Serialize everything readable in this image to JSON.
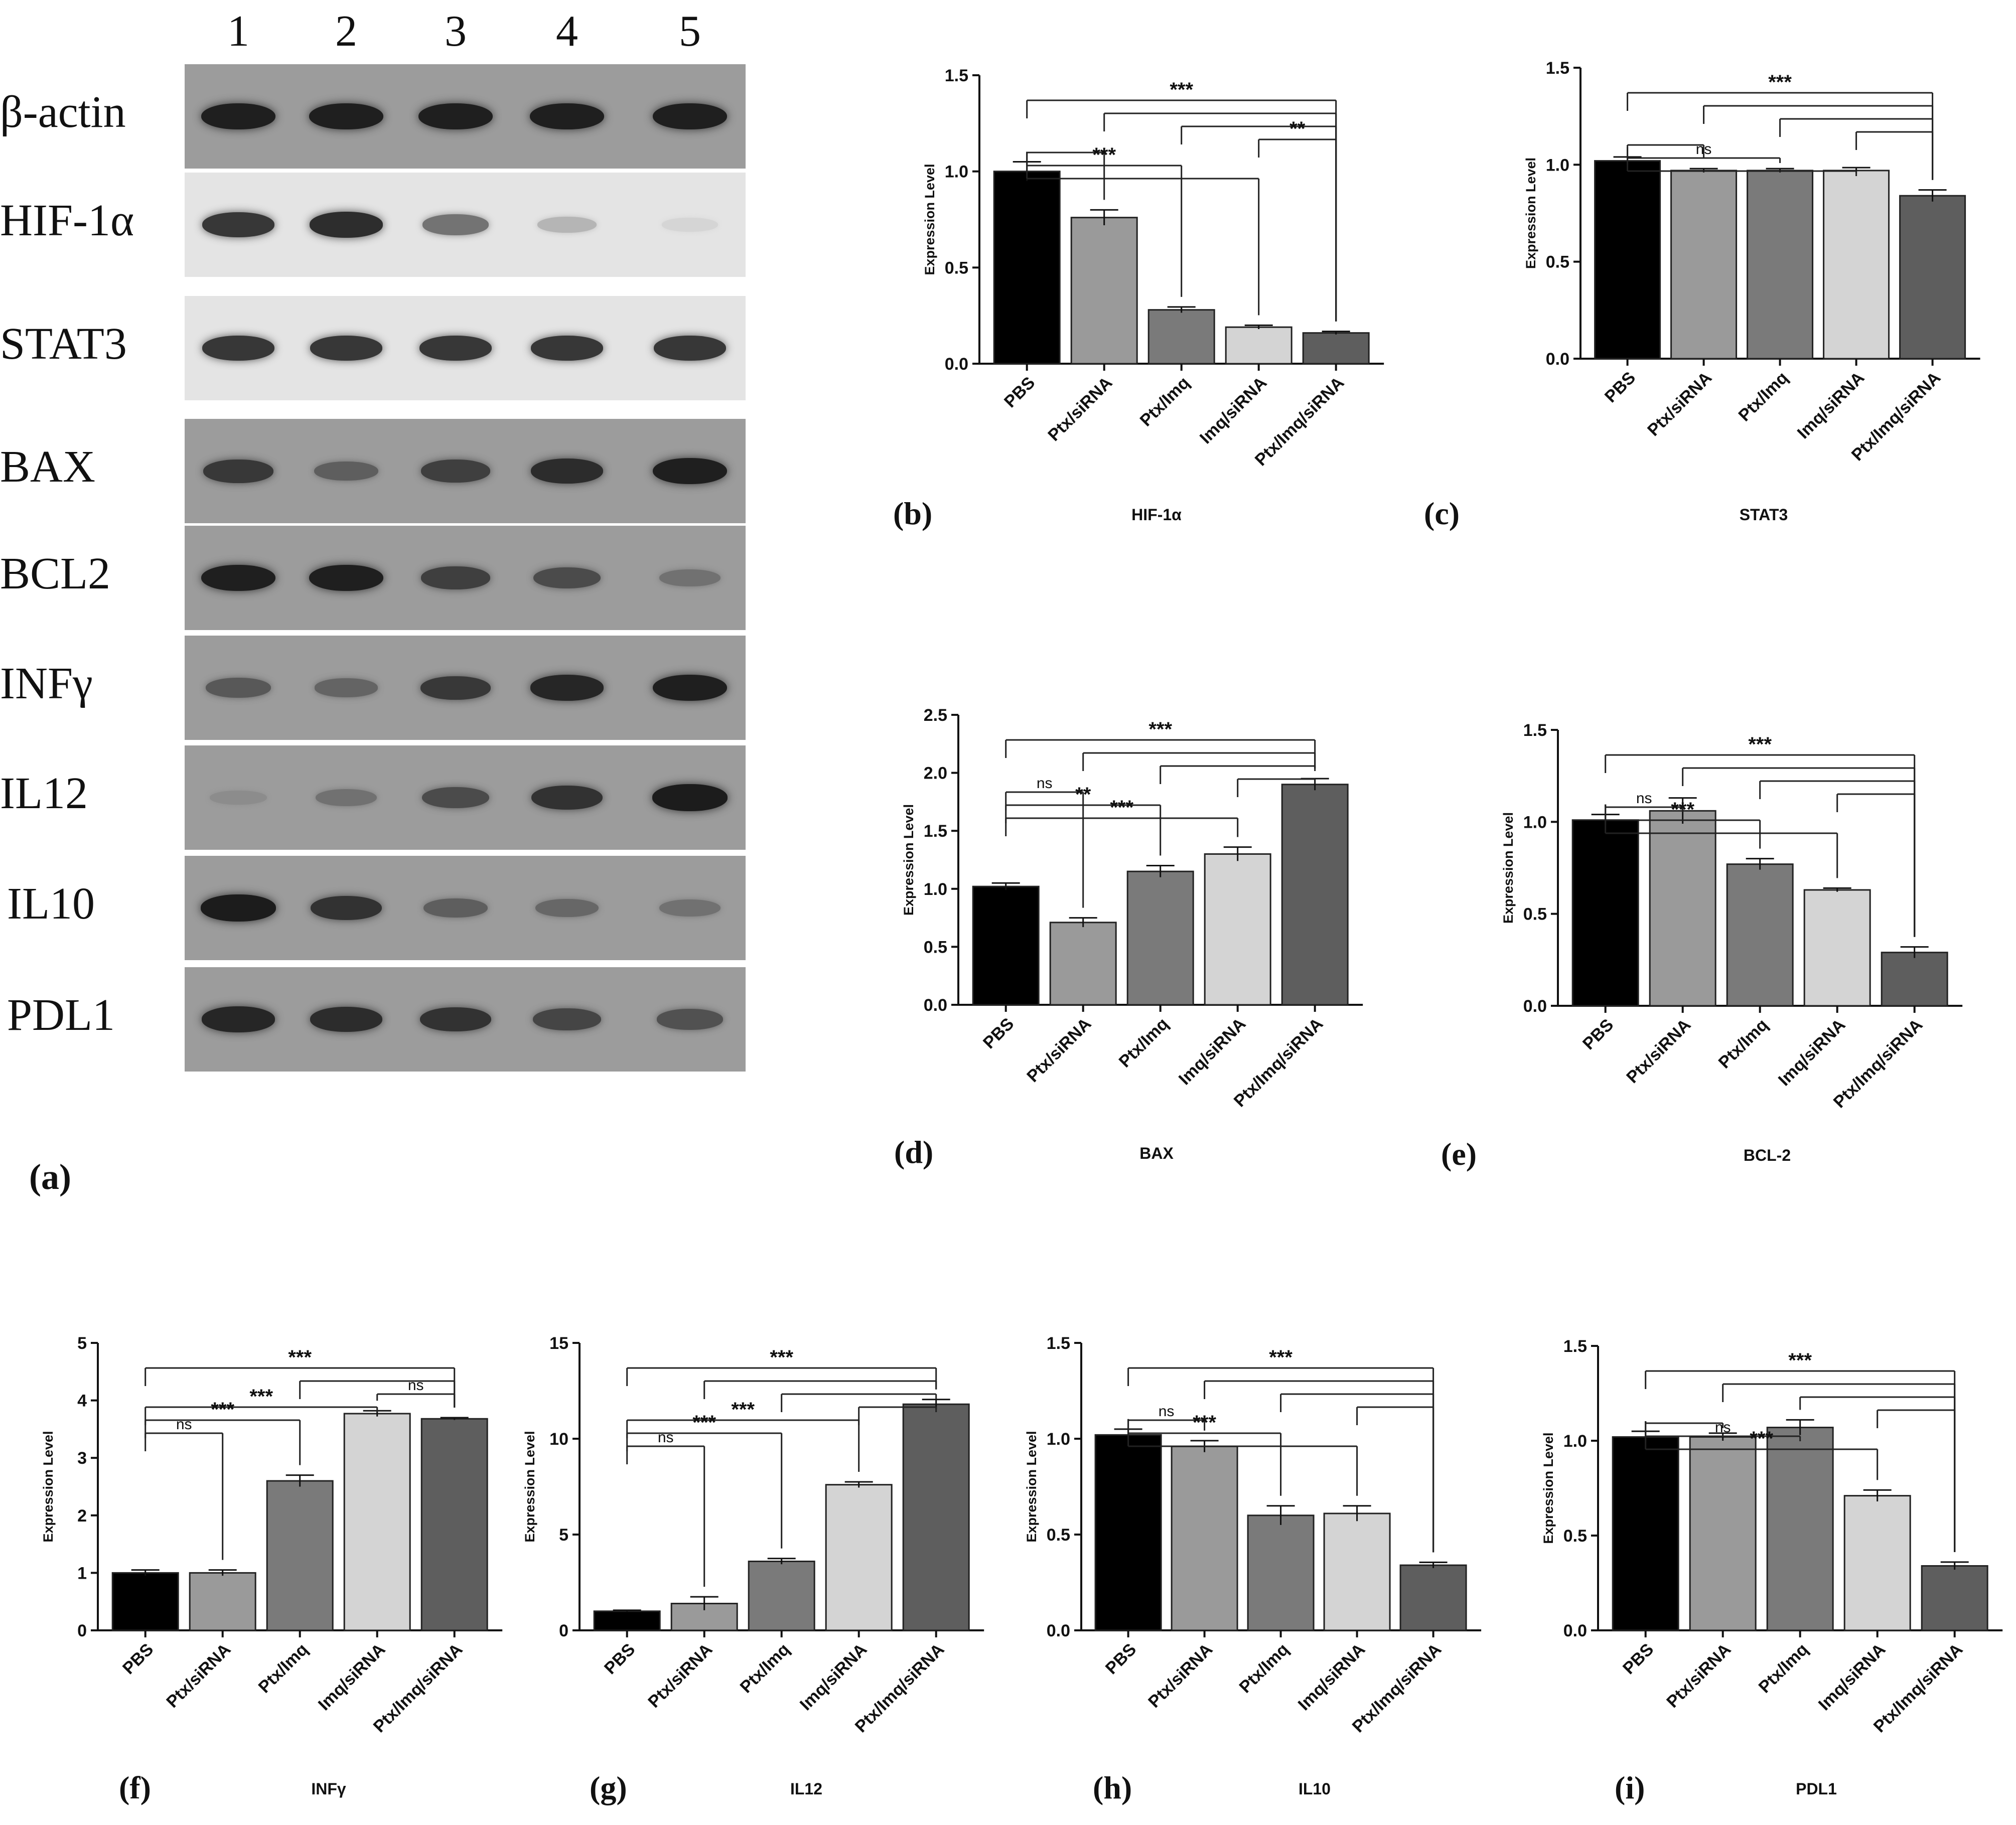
{
  "colors": {
    "PBS": "#000000",
    "Ptx/siRNA": "#9a9a9a",
    "Ptx/Imq": "#7a7a7a",
    "Imq/siRNA": "#d4d4d4",
    "Ptx/Imq/siRNA": "#5e5e5e",
    "dark_strip": "#9c9c9c",
    "light_strip": "#e4e4e4"
  },
  "blot": {
    "panel_label": "(a)",
    "lanes": [
      "1",
      "2",
      "3",
      "4",
      "5"
    ],
    "rows": [
      {
        "label": "β-actin",
        "strip": "dark",
        "intensity": [
          0.95,
          0.95,
          0.95,
          0.95,
          0.95
        ]
      },
      {
        "label": "HIF-1α",
        "strip": "light",
        "intensity": [
          0.85,
          0.9,
          0.55,
          0.22,
          0.06
        ]
      },
      {
        "label": "STAT3",
        "strip": "light",
        "intensity": [
          0.85,
          0.85,
          0.85,
          0.85,
          0.85
        ]
      },
      {
        "label": "BAX",
        "strip": "dark",
        "intensity": [
          0.75,
          0.45,
          0.7,
          0.85,
          0.95
        ]
      },
      {
        "label": "BCL2",
        "strip": "dark",
        "intensity": [
          0.95,
          0.95,
          0.7,
          0.6,
          0.3
        ]
      },
      {
        "label": "INFγ",
        "strip": "dark",
        "intensity": [
          0.5,
          0.4,
          0.75,
          0.9,
          0.95
        ]
      },
      {
        "label": "IL12",
        "strip": "dark",
        "intensity": [
          0.08,
          0.3,
          0.6,
          0.8,
          0.98
        ]
      },
      {
        "label": "IL10",
        "strip": "dark",
        "intensity": [
          0.98,
          0.8,
          0.45,
          0.38,
          0.3
        ]
      },
      {
        "label": "PDL1",
        "strip": "dark",
        "intensity": [
          0.9,
          0.85,
          0.8,
          0.65,
          0.55
        ]
      }
    ]
  },
  "chart_data": [
    {
      "id": "b",
      "panel_label": "(b)",
      "title": "HIF-1α",
      "type": "bar",
      "ylabel": "Expression Level",
      "xlabel": "",
      "categories": [
        "PBS",
        "Ptx/siRNA",
        "Ptx/Imq",
        "Imq/siRNA",
        "Ptx/Imq/siRNA"
      ],
      "values": [
        1.0,
        0.76,
        0.28,
        0.19,
        0.16
      ],
      "errors": [
        0.05,
        0.04,
        0.015,
        0.01,
        0.008
      ],
      "ylim": [
        0,
        1.5
      ],
      "yticks": [
        "0.0",
        "0.5",
        "1.0",
        "1.5"
      ],
      "significance": [
        {
          "from": 0,
          "to": 4,
          "label": "***"
        },
        {
          "from": 1,
          "to": 4,
          "label": ""
        },
        {
          "from": 2,
          "to": 4,
          "label": ""
        },
        {
          "from": 3,
          "to": 4,
          "label": "**"
        },
        {
          "from": 0,
          "to": 1,
          "label": ""
        },
        {
          "from": 0,
          "to": 2,
          "label": "***"
        },
        {
          "from": 0,
          "to": 3,
          "label": ""
        }
      ]
    },
    {
      "id": "c",
      "panel_label": "(c)",
      "title": "STAT3",
      "type": "bar",
      "ylabel": "Expression Level",
      "xlabel": "",
      "categories": [
        "PBS",
        "Ptx/siRNA",
        "Ptx/Imq",
        "Imq/siRNA",
        "Ptx/Imq/siRNA"
      ],
      "values": [
        1.02,
        0.97,
        0.97,
        0.97,
        0.84
      ],
      "errors": [
        0.02,
        0.01,
        0.01,
        0.015,
        0.03
      ],
      "ylim": [
        0,
        1.5
      ],
      "yticks": [
        "0.0",
        "0.5",
        "1.0",
        "1.5"
      ],
      "significance": [
        {
          "from": 0,
          "to": 4,
          "label": "***"
        },
        {
          "from": 1,
          "to": 4,
          "label": ""
        },
        {
          "from": 2,
          "to": 4,
          "label": ""
        },
        {
          "from": 3,
          "to": 4,
          "label": ""
        },
        {
          "from": 0,
          "to": 1,
          "label": ""
        },
        {
          "from": 0,
          "to": 2,
          "label": "ns"
        },
        {
          "from": 0,
          "to": 3,
          "label": ""
        }
      ]
    },
    {
      "id": "d",
      "panel_label": "(d)",
      "title": "BAX",
      "type": "bar",
      "ylabel": "Expression Level",
      "xlabel": "",
      "categories": [
        "PBS",
        "Ptx/siRNA",
        "Ptx/Imq",
        "Imq/siRNA",
        "Ptx/Imq/siRNA"
      ],
      "values": [
        1.02,
        0.71,
        1.15,
        1.3,
        1.9
      ],
      "errors": [
        0.03,
        0.04,
        0.05,
        0.06,
        0.05
      ],
      "ylim": [
        0,
        2.5
      ],
      "yticks": [
        "0.0",
        "0.5",
        "1.0",
        "1.5",
        "2.0",
        "2.5"
      ],
      "significance": [
        {
          "from": 0,
          "to": 4,
          "label": "***"
        },
        {
          "from": 1,
          "to": 4,
          "label": ""
        },
        {
          "from": 2,
          "to": 4,
          "label": ""
        },
        {
          "from": 3,
          "to": 4,
          "label": ""
        },
        {
          "from": 0,
          "to": 1,
          "label": "ns"
        },
        {
          "from": 0,
          "to": 2,
          "label": "**"
        },
        {
          "from": 0,
          "to": 3,
          "label": "***"
        }
      ]
    },
    {
      "id": "e",
      "panel_label": "(e)",
      "title": "BCL-2",
      "type": "bar",
      "ylabel": "Expression Level",
      "xlabel": "",
      "categories": [
        "PBS",
        "Ptx/siRNA",
        "Ptx/Imq",
        "Imq/siRNA",
        "Ptx/Imq/siRNA"
      ],
      "values": [
        1.01,
        1.06,
        0.77,
        0.63,
        0.29
      ],
      "errors": [
        0.03,
        0.07,
        0.03,
        0.01,
        0.03
      ],
      "ylim": [
        0,
        1.5
      ],
      "yticks": [
        "0.0",
        "0.5",
        "1.0",
        "1.5"
      ],
      "significance": [
        {
          "from": 0,
          "to": 4,
          "label": "***"
        },
        {
          "from": 1,
          "to": 4,
          "label": ""
        },
        {
          "from": 2,
          "to": 4,
          "label": ""
        },
        {
          "from": 3,
          "to": 4,
          "label": ""
        },
        {
          "from": 0,
          "to": 1,
          "label": "ns"
        },
        {
          "from": 0,
          "to": 2,
          "label": "***"
        },
        {
          "from": 0,
          "to": 3,
          "label": ""
        }
      ]
    },
    {
      "id": "f",
      "panel_label": "(f)",
      "title": "INFγ",
      "type": "bar",
      "ylabel": "Expression Level",
      "xlabel": "",
      "categories": [
        "PBS",
        "Ptx/siRNA",
        "Ptx/Imq",
        "Imq/siRNA",
        "Ptx/Imq/siRNA"
      ],
      "values": [
        1.0,
        1.0,
        2.6,
        3.77,
        3.68
      ],
      "errors": [
        0.05,
        0.05,
        0.1,
        0.05,
        0.02
      ],
      "ylim": [
        0,
        5
      ],
      "yticks": [
        "0",
        "1",
        "2",
        "3",
        "4",
        "5"
      ],
      "significance": [
        {
          "from": 0,
          "to": 4,
          "label": "***"
        },
        {
          "from": 2,
          "to": 4,
          "label": ""
        },
        {
          "from": 3,
          "to": 4,
          "label": "ns"
        },
        {
          "from": 0,
          "to": 3,
          "label": "***"
        },
        {
          "from": 0,
          "to": 2,
          "label": "***"
        },
        {
          "from": 0,
          "to": 1,
          "label": "ns"
        }
      ]
    },
    {
      "id": "g",
      "panel_label": "(g)",
      "title": "IL12",
      "type": "bar",
      "ylabel": "Expression Level",
      "xlabel": "",
      "categories": [
        "PBS",
        "Ptx/siRNA",
        "Ptx/Imq",
        "Imq/siRNA",
        "Ptx/Imq/siRNA"
      ],
      "values": [
        1.0,
        1.4,
        3.6,
        7.6,
        11.8
      ],
      "errors": [
        0.05,
        0.35,
        0.15,
        0.15,
        0.25
      ],
      "ylim": [
        0,
        15
      ],
      "yticks": [
        "0",
        "5",
        "10",
        "15"
      ],
      "significance": [
        {
          "from": 0,
          "to": 4,
          "label": "***"
        },
        {
          "from": 1,
          "to": 4,
          "label": ""
        },
        {
          "from": 2,
          "to": 4,
          "label": ""
        },
        {
          "from": 3,
          "to": 4,
          "label": ""
        },
        {
          "from": 0,
          "to": 3,
          "label": "***"
        },
        {
          "from": 0,
          "to": 2,
          "label": "***"
        },
        {
          "from": 0,
          "to": 1,
          "label": "ns"
        }
      ]
    },
    {
      "id": "h",
      "panel_label": "(h)",
      "title": "IL10",
      "type": "bar",
      "ylabel": "Expression Level",
      "xlabel": "",
      "categories": [
        "PBS",
        "Ptx/siRNA",
        "Ptx/Imq",
        "Imq/siRNA",
        "Ptx/Imq/siRNA"
      ],
      "values": [
        1.02,
        0.96,
        0.6,
        0.61,
        0.34
      ],
      "errors": [
        0.03,
        0.03,
        0.05,
        0.04,
        0.015
      ],
      "ylim": [
        0,
        1.5
      ],
      "yticks": [
        "0.0",
        "0.5",
        "1.0",
        "1.5"
      ],
      "significance": [
        {
          "from": 0,
          "to": 4,
          "label": "***"
        },
        {
          "from": 1,
          "to": 4,
          "label": ""
        },
        {
          "from": 2,
          "to": 4,
          "label": ""
        },
        {
          "from": 3,
          "to": 4,
          "label": ""
        },
        {
          "from": 0,
          "to": 1,
          "label": "ns"
        },
        {
          "from": 0,
          "to": 2,
          "label": "***"
        },
        {
          "from": 0,
          "to": 3,
          "label": ""
        }
      ]
    },
    {
      "id": "i",
      "panel_label": "(i)",
      "title": "PDL1",
      "type": "bar",
      "ylabel": "Expression Level",
      "xlabel": "",
      "categories": [
        "PBS",
        "Ptx/siRNA",
        "Ptx/Imq",
        "Imq/siRNA",
        "Ptx/Imq/siRNA"
      ],
      "values": [
        1.02,
        1.02,
        1.07,
        0.71,
        0.34
      ],
      "errors": [
        0.03,
        0.02,
        0.04,
        0.03,
        0.02
      ],
      "ylim": [
        0,
        1.5
      ],
      "yticks": [
        "0.0",
        "0.5",
        "1.0",
        "1.5"
      ],
      "significance": [
        {
          "from": 0,
          "to": 4,
          "label": "***"
        },
        {
          "from": 1,
          "to": 4,
          "label": ""
        },
        {
          "from": 2,
          "to": 4,
          "label": ""
        },
        {
          "from": 3,
          "to": 4,
          "label": ""
        },
        {
          "from": 0,
          "to": 1,
          "label": ""
        },
        {
          "from": 0,
          "to": 2,
          "label": "ns"
        },
        {
          "from": 0,
          "to": 3,
          "label": "***"
        }
      ]
    }
  ]
}
